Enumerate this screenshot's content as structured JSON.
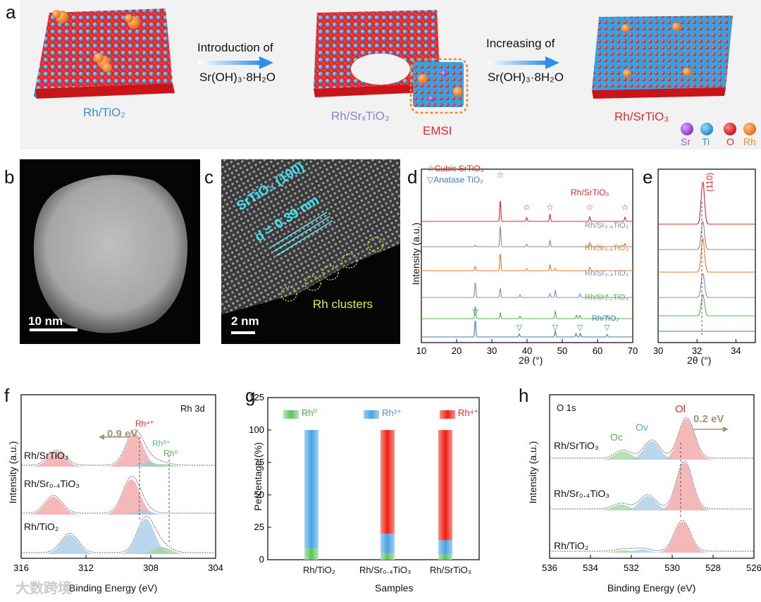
{
  "panel_letters": {
    "a": "a",
    "b": "b",
    "c": "c",
    "d": "d",
    "e": "e",
    "f": "f",
    "g": "g",
    "h": "h"
  },
  "panel_a": {
    "step1_line1": "Introduction of",
    "step1_line2": "Sr(OH)₃·8H₂O",
    "step2_line1": "Increasing of",
    "step2_line2": "Sr(OH)₃·8H₂O",
    "label_rh_tio2": "Rh/TiO₂",
    "label_rh_srxtio3": "Rh/SrₓTiO₃",
    "label_emsi": "EMSI",
    "label_rh_srtio3": "Rh/SrTiO₃",
    "legend": [
      {
        "name": "Sr",
        "color": "#a450e0"
      },
      {
        "name": "Ti",
        "color": "#29a0de"
      },
      {
        "name": "O",
        "color": "#e8262a"
      },
      {
        "name": "Rh",
        "color": "#f08a24"
      }
    ],
    "colors": {
      "ti": "#29a0de",
      "o": "#e8262a",
      "rh": "#f08a24",
      "sr": "#a450e0",
      "bg": "#f2f2f2"
    }
  },
  "panel_b": {
    "scale": "10 nm"
  },
  "panel_c": {
    "lattice": "SrTiO₃ (100)",
    "spacing": "d = 0.39 nm",
    "clusters": "Rh clusters",
    "scale": "2 nm"
  },
  "chart_data": [
    {
      "id": "d",
      "type": "line",
      "xlabel": "2θ (°)",
      "ylabel": "Intensity (a.u.)",
      "xlim": [
        10,
        70
      ],
      "xticks": [
        10,
        20,
        30,
        40,
        50,
        60,
        70
      ],
      "legend": [
        "Cubic SrTiO₃",
        "Anatase TiO₂"
      ],
      "series": [
        {
          "name": "Rh/SrTiO₃",
          "color": "#e02a2a",
          "peaks": [
            [
              32.4,
              1.0
            ],
            [
              39.9,
              0.18
            ],
            [
              46.5,
              0.35
            ],
            [
              57.8,
              0.22
            ],
            [
              67.8,
              0.2
            ]
          ]
        },
        {
          "name": "Rh/Sr0.8TiO₃",
          "color": "#8f8c80",
          "peaks": [
            [
              32.4,
              1.0
            ],
            [
              39.9,
              0.12
            ],
            [
              46.5,
              0.3
            ],
            [
              57.8,
              0.2
            ],
            [
              67.8,
              0.16
            ],
            [
              25.3,
              0.08
            ]
          ]
        },
        {
          "name": "Rh/Sr0.6TiO₃",
          "color": "#f07a2b",
          "peaks": [
            [
              32.4,
              0.9
            ],
            [
              25.3,
              0.22
            ],
            [
              46.5,
              0.3
            ],
            [
              57.8,
              0.18
            ],
            [
              39.9,
              0.1
            ],
            [
              48.0,
              0.1
            ]
          ]
        },
        {
          "name": "Rh/Sr0.4TiO₃",
          "color": "#8b84c9",
          "peaks": [
            [
              25.3,
              0.85
            ],
            [
              32.4,
              0.5
            ],
            [
              48.0,
              0.4
            ],
            [
              46.5,
              0.22
            ],
            [
              38.0,
              0.15
            ],
            [
              55.0,
              0.2
            ],
            [
              62.7,
              0.15
            ]
          ]
        },
        {
          "name": "Rh/Sr0.2TiO₃",
          "color": "#58b348",
          "peaks": [
            [
              25.3,
              0.75
            ],
            [
              32.4,
              0.35
            ],
            [
              48.0,
              0.45
            ],
            [
              38.0,
              0.15
            ],
            [
              54.0,
              0.2
            ],
            [
              55.0,
              0.2
            ],
            [
              62.7,
              0.15
            ]
          ]
        },
        {
          "name": "Rh/TiO₂",
          "color": "#3d7dc2",
          "peaks": [
            [
              25.3,
              1.0
            ],
            [
              37.8,
              0.18
            ],
            [
              48.0,
              0.35
            ],
            [
              53.9,
              0.2
            ],
            [
              55.1,
              0.22
            ],
            [
              62.7,
              0.15
            ]
          ]
        }
      ],
      "markers_srtio3": [
        32.4,
        39.9,
        46.5,
        57.8,
        67.8
      ],
      "markers_tio2": [
        25.3,
        37.8,
        48.0,
        55.0,
        62.7
      ]
    },
    {
      "id": "e",
      "type": "line",
      "xlabel": "2θ (°)",
      "xlim": [
        30,
        35
      ],
      "xticks": [
        30,
        32,
        34
      ],
      "annotation": "(110)",
      "peak_centers": [
        32.3,
        32.3,
        32.3,
        32.3,
        32.3,
        32.4,
        0
      ]
    },
    {
      "id": "f",
      "type": "line",
      "title": "Rh 3d",
      "xlabel": "Binding Energy (eV)",
      "ylabel": "Intensity (a.u.)",
      "xlim": [
        316,
        304
      ],
      "xticks": [
        316,
        312,
        308,
        304
      ],
      "shift_label": "0.9 eV",
      "component_labels": [
        "Rh⁴⁺",
        "Rh³⁺",
        "Rh⁰"
      ],
      "series": [
        {
          "name": "Rh/SrTiO₃",
          "peaks": [
            [
              309.0,
              1.0,
              "#f0a0a0"
            ],
            [
              313.8,
              0.45,
              "#f0a0a0"
            ],
            [
              308.2,
              0.15,
              "#a6c8e8"
            ],
            [
              307.3,
              0.08,
              "#9dd49d"
            ]
          ]
        },
        {
          "name": "Rh/Sr0.4TiO₃",
          "peaks": [
            [
              309.2,
              1.0,
              "#f0a0a0"
            ],
            [
              314.0,
              0.5,
              "#f0a0a0"
            ],
            [
              308.5,
              0.12,
              "#a6c8e8"
            ]
          ]
        },
        {
          "name": "Rh/TiO₂",
          "peaks": [
            [
              308.3,
              1.0,
              "#a6c8e8"
            ],
            [
              313.0,
              0.55,
              "#a6c8e8"
            ],
            [
              307.3,
              0.2,
              "#9dd49d"
            ]
          ]
        }
      ]
    },
    {
      "id": "g",
      "type": "bar",
      "xlabel": "Samples",
      "ylabel": "Percentage (%)",
      "ylim": [
        0,
        125
      ],
      "yticks": [
        0,
        25,
        50,
        75,
        100,
        125
      ],
      "categories": [
        "Rh/TiO₂",
        "Rh/Sr₀.₄TiO₃",
        "Rh/SrTiO₃"
      ],
      "series": [
        {
          "name": "Rh⁰",
          "color": "#7dcf7d",
          "values": [
            9,
            5,
            4
          ]
        },
        {
          "name": "Rh³⁺",
          "color": "#63b0e8",
          "values": [
            91,
            15,
            11
          ]
        },
        {
          "name": "Rh⁴⁺",
          "color": "#f03c2a",
          "values": [
            0,
            80,
            85
          ]
        }
      ]
    },
    {
      "id": "h",
      "type": "line",
      "title": "O 1s",
      "xlabel": "Binding Energy (eV)",
      "ylabel": "Intensity (a.u.)",
      "xlim": [
        536,
        526
      ],
      "xticks": [
        536,
        534,
        532,
        530,
        528,
        526
      ],
      "shift_label": "0.2 eV",
      "component_labels": [
        "Oc",
        "Ov",
        "Ol"
      ],
      "series": [
        {
          "name": "Rh/SrTiO₃",
          "peaks": [
            [
              529.3,
              1.0,
              "#f0a0a0"
            ],
            [
              531.0,
              0.45,
              "#a6c8e8"
            ],
            [
              532.4,
              0.2,
              "#9dd49d"
            ]
          ]
        },
        {
          "name": "Rh/Sr0.4TiO₃",
          "peaks": [
            [
              529.4,
              1.0,
              "#f0a0a0"
            ],
            [
              531.2,
              0.3,
              "#a6c8e8"
            ],
            [
              532.5,
              0.12,
              "#9dd49d"
            ]
          ]
        },
        {
          "name": "Rh/TiO₂",
          "peaks": [
            [
              529.5,
              1.0,
              "#f0a0a0"
            ],
            [
              531.5,
              0.1,
              "#a6c8e8"
            ],
            [
              532.4,
              0.08,
              "#9dd49d"
            ]
          ]
        }
      ]
    }
  ],
  "labels": {
    "d_srtio3": "Rh/SrTiO₃",
    "d_sr08": "Rh/Sr₀.₈TiO₃",
    "d_sr06": "Rh/Sr₀.₆TiO₃",
    "d_sr04": "Rh/Sr₀.₄TiO₃",
    "d_sr02": "Rh/Sr₀.₂TiO₃",
    "d_tio2": "Rh/TiO₂",
    "f_srtio3": "Rh/SrTiO₃",
    "f_sr04": "Rh/Sr₀.₄TiO₃",
    "f_tio2": "Rh/TiO₂",
    "h_srtio3": "Rh/SrTiO₃",
    "h_sr04": "Rh/Sr₀.₄TiO₃",
    "h_tio2": "Rh/TiO₂",
    "watermark": "大数跨境"
  }
}
